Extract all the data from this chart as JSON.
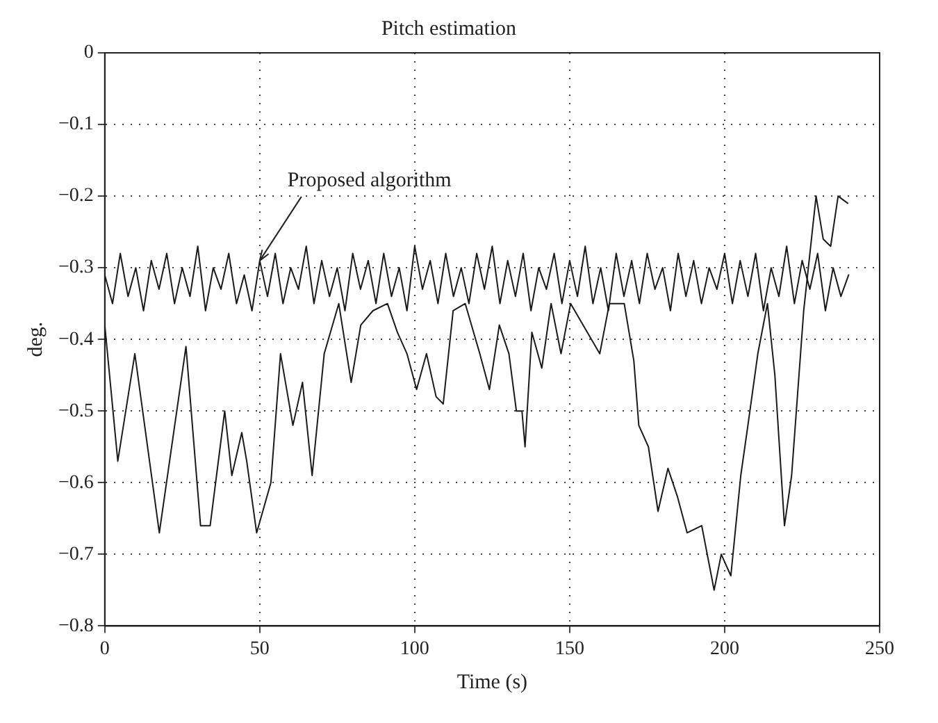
{
  "chart_data": {
    "type": "line",
    "title": "Pitch estimation",
    "xlabel": "Time (s)",
    "ylabel": "deg.",
    "xlim": [
      0,
      250
    ],
    "xticks": [
      0,
      50,
      100,
      150,
      200,
      250
    ],
    "ylim": [
      -0.8,
      0
    ],
    "yticks": [
      {
        "value": 0,
        "label": "0"
      },
      {
        "value": -0.1,
        "label": "−0.1"
      },
      {
        "value": -0.2,
        "label": "−0.2"
      },
      {
        "value": -0.3,
        "label": "−0.3"
      },
      {
        "value": -0.4,
        "label": "−0.4"
      },
      {
        "value": -0.5,
        "label": "−0.5"
      },
      {
        "value": -0.6,
        "label": "−0.6"
      },
      {
        "value": -0.7,
        "label": "−0.7"
      },
      {
        "value": -0.8,
        "label": "−0.8"
      }
    ],
    "grid": true,
    "legend": false,
    "marker": "none",
    "line_style": "solid",
    "annotations": [
      {
        "text": "Proposed algorithm",
        "x": 50,
        "y": -0.29
      }
    ],
    "series": [
      {
        "color": "#1a1a1a",
        "x": [
          0,
          4.2,
          9.7,
          17.6,
          26.2,
          30.9,
          34,
          38.7,
          41,
          44.2,
          45.8,
          49,
          53.6,
          56.7,
          60.7,
          63.8,
          66.9,
          70.8,
          75.5,
          79.5,
          82.6,
          86.5,
          91.2,
          94.4,
          97.5,
          100.6,
          103.8,
          106.9,
          109.2,
          112.4,
          116.3,
          121,
          124.1,
          127.3,
          130.4,
          132.8,
          134.6,
          135.6,
          137.8,
          141,
          144,
          147.2,
          150.3,
          159.7,
          162.8,
          167.6,
          170.7,
          172.3,
          175.4,
          178.5,
          181.7,
          184.8,
          187.9,
          192.6,
          196.6,
          198.9,
          202,
          205.2,
          207.5,
          210.7,
          213.8,
          216.2,
          219.3,
          221.6,
          225.5,
          229.5,
          231.8,
          234.2,
          236.6,
          239.7
        ],
        "values": [
          -0.38,
          -0.57,
          -0.42,
          -0.67,
          -0.41,
          -0.66,
          -0.66,
          -0.5,
          -0.59,
          -0.53,
          -0.57,
          -0.67,
          -0.6,
          -0.42,
          -0.52,
          -0.46,
          -0.59,
          -0.42,
          -0.35,
          -0.46,
          -0.38,
          -0.36,
          -0.35,
          -0.39,
          -0.42,
          -0.47,
          -0.42,
          -0.48,
          -0.49,
          -0.36,
          -0.35,
          -0.42,
          -0.47,
          -0.38,
          -0.42,
          -0.5,
          -0.5,
          -0.55,
          -0.39,
          -0.44,
          -0.35,
          -0.42,
          -0.35,
          -0.42,
          -0.35,
          -0.35,
          -0.43,
          -0.52,
          -0.55,
          -0.64,
          -0.58,
          -0.62,
          -0.67,
          -0.66,
          -0.75,
          -0.7,
          -0.73,
          -0.59,
          -0.52,
          -0.42,
          -0.35,
          -0.45,
          -0.66,
          -0.59,
          -0.36,
          -0.2,
          -0.26,
          -0.27,
          -0.2,
          -0.21
        ]
      },
      {
        "color": "#1a1a1a",
        "x": [
          0,
          2.5,
          5,
          7.5,
          10,
          12.5,
          15,
          17.5,
          20,
          22.5,
          25,
          27.5,
          30,
          32.5,
          35,
          37.5,
          40,
          42.5,
          45,
          47.5,
          50,
          52.5,
          55,
          57.5,
          60,
          62.5,
          65,
          67.5,
          70,
          72.5,
          75,
          77.5,
          80,
          82.5,
          85,
          87.5,
          90,
          92.5,
          95,
          97.5,
          100,
          102.5,
          105,
          107.5,
          110,
          112.5,
          115,
          117.5,
          120,
          122.5,
          125,
          127.5,
          130,
          132.5,
          135,
          137.5,
          140,
          142.5,
          145,
          147.5,
          150,
          152.5,
          155,
          157.5,
          160,
          162.5,
          165,
          167.5,
          170,
          172.5,
          175,
          177.5,
          180,
          182.5,
          185,
          187.5,
          190,
          192.5,
          195,
          197.5,
          200,
          202.5,
          205,
          207.5,
          210,
          212.5,
          215,
          217.5,
          220,
          222.5,
          225,
          227.5,
          230,
          232.5,
          235,
          237.5,
          240
        ],
        "values": [
          -0.31,
          -0.35,
          -0.28,
          -0.34,
          -0.3,
          -0.36,
          -0.29,
          -0.33,
          -0.28,
          -0.35,
          -0.3,
          -0.34,
          -0.27,
          -0.36,
          -0.3,
          -0.33,
          -0.28,
          -0.35,
          -0.31,
          -0.36,
          -0.29,
          -0.34,
          -0.28,
          -0.35,
          -0.3,
          -0.33,
          -0.27,
          -0.35,
          -0.29,
          -0.34,
          -0.3,
          -0.36,
          -0.28,
          -0.33,
          -0.29,
          -0.35,
          -0.28,
          -0.34,
          -0.3,
          -0.36,
          -0.27,
          -0.33,
          -0.29,
          -0.35,
          -0.28,
          -0.34,
          -0.3,
          -0.35,
          -0.28,
          -0.33,
          -0.27,
          -0.35,
          -0.29,
          -0.34,
          -0.28,
          -0.36,
          -0.3,
          -0.33,
          -0.28,
          -0.35,
          -0.29,
          -0.34,
          -0.27,
          -0.35,
          -0.3,
          -0.36,
          -0.28,
          -0.34,
          -0.29,
          -0.35,
          -0.28,
          -0.33,
          -0.3,
          -0.36,
          -0.28,
          -0.34,
          -0.29,
          -0.35,
          -0.3,
          -0.33,
          -0.28,
          -0.35,
          -0.29,
          -0.34,
          -0.28,
          -0.36,
          -0.3,
          -0.34,
          -0.27,
          -0.35,
          -0.29,
          -0.33,
          -0.28,
          -0.36,
          -0.3,
          -0.34,
          -0.31
        ]
      }
    ]
  }
}
